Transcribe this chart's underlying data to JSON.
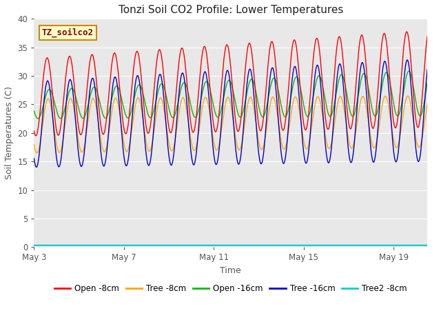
{
  "title": "Tonzi Soil CO2 Profile: Lower Temperatures",
  "xlabel": "Time",
  "ylabel": "Soil Temperatures (C)",
  "ylim": [
    0,
    40
  ],
  "yticks": [
    0,
    5,
    10,
    15,
    20,
    25,
    30,
    35,
    40
  ],
  "xtick_labels": [
    "May 3",
    "May 7",
    "May 11",
    "May 15",
    "May 19"
  ],
  "xtick_positions": [
    0,
    4,
    8,
    12,
    16
  ],
  "xlim": [
    0,
    17.5
  ],
  "fig_bg_color": "#ffffff",
  "plot_bg_color": "#e8e8e8",
  "grid_color": "#ffffff",
  "colors": {
    "open_8cm": "#ff0000",
    "tree_8cm": "#ffa500",
    "open_16cm": "#00bb00",
    "tree_16cm": "#0000cc",
    "tree2_8cm": "#00cccc"
  },
  "legend_label_box": "TZ_soilco2",
  "legend_label_box_bg": "#ffffcc",
  "legend_label_box_border": "#cc8800",
  "legend_entries": [
    "Open -8cm",
    "Tree -8cm",
    "Open -16cm",
    "Tree -16cm",
    "Tree2 -8cm"
  ],
  "tree2_8cm_value": 0.3
}
